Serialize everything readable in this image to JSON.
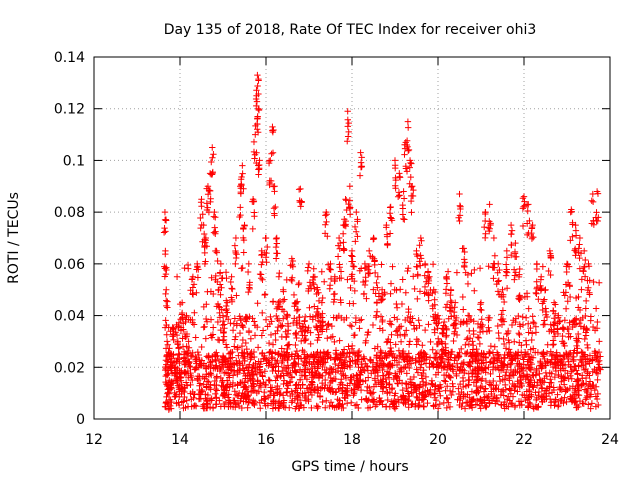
{
  "chart_data": {
    "type": "scatter",
    "title": "Day 135 of 2018, Rate Of TEC Index for receiver ohi3",
    "xlabel": "GPS time / hours",
    "ylabel": "ROTI / TECUs",
    "xlim": [
      12,
      24
    ],
    "ylim": [
      0,
      0.14
    ],
    "xticks": [
      12,
      14,
      16,
      18,
      20,
      22,
      24
    ],
    "xtick_labels": [
      "12",
      "14",
      "16",
      "18",
      "20",
      "22",
      "24"
    ],
    "yticks": [
      0,
      0.02,
      0.04,
      0.06,
      0.08,
      0.1,
      0.12,
      0.14
    ],
    "ytick_labels": [
      "0",
      "0.02",
      "0.04",
      "0.06",
      "0.08",
      "0.1",
      "0.12",
      "0.14"
    ],
    "grid": true,
    "marker": "+",
    "colors": {
      "series": "#ff0000",
      "grid": "#a0a0a0",
      "axes": "#000000"
    },
    "series": [
      {
        "name": "ROTI",
        "x": [
          13.65,
          13.66,
          13.68,
          13.7,
          13.72,
          13.75,
          13.8,
          13.85,
          13.9,
          13.95,
          14.0,
          14.05,
          14.1,
          14.15,
          14.2,
          14.3,
          14.4,
          14.5,
          14.55,
          14.6,
          14.65,
          14.7,
          14.75,
          14.8,
          14.85,
          14.9,
          14.95,
          15.0,
          15.1,
          15.2,
          15.3,
          15.4,
          15.45,
          15.5,
          15.6,
          15.7,
          15.75,
          15.78,
          15.8,
          15.82,
          15.85,
          15.9,
          16.0,
          16.1,
          16.15,
          16.2,
          16.25,
          16.3,
          16.4,
          16.5,
          16.6,
          16.7,
          16.8,
          16.9,
          17.0,
          17.1,
          17.2,
          17.3,
          17.4,
          17.5,
          17.6,
          17.7,
          17.8,
          17.85,
          17.9,
          17.95,
          18.0,
          18.1,
          18.2,
          18.3,
          18.4,
          18.5,
          18.6,
          18.7,
          18.8,
          18.9,
          19.0,
          19.1,
          19.2,
          19.25,
          19.3,
          19.35,
          19.4,
          19.5,
          19.6,
          19.7,
          19.8,
          19.9,
          20.0,
          20.1,
          20.2,
          20.3,
          20.4,
          20.5,
          20.6,
          20.7,
          20.8,
          20.9,
          21.0,
          21.1,
          21.2,
          21.3,
          21.4,
          21.5,
          21.6,
          21.7,
          21.8,
          21.9,
          22.0,
          22.1,
          22.2,
          22.3,
          22.4,
          22.5,
          22.6,
          22.7,
          22.8,
          22.9,
          23.0,
          23.1,
          23.2,
          23.3,
          23.4,
          23.5,
          23.6,
          23.7,
          23.75
        ],
        "y": [
          0.08,
          0.065,
          0.05,
          0.03,
          0.02,
          0.015,
          0.025,
          0.035,
          0.02,
          0.03,
          0.018,
          0.045,
          0.025,
          0.04,
          0.03,
          0.055,
          0.06,
          0.085,
          0.075,
          0.07,
          0.09,
          0.095,
          0.105,
          0.08,
          0.065,
          0.05,
          0.06,
          0.04,
          0.045,
          0.055,
          0.07,
          0.09,
          0.098,
          0.075,
          0.06,
          0.085,
          0.11,
          0.125,
          0.133,
          0.12,
          0.1,
          0.065,
          0.07,
          0.1,
          0.113,
          0.09,
          0.07,
          0.055,
          0.05,
          0.04,
          0.062,
          0.045,
          0.089,
          0.038,
          0.06,
          0.055,
          0.05,
          0.045,
          0.08,
          0.06,
          0.055,
          0.07,
          0.075,
          0.085,
          0.119,
          0.09,
          0.065,
          0.08,
          0.103,
          0.06,
          0.065,
          0.07,
          0.055,
          0.05,
          0.075,
          0.082,
          0.1,
          0.095,
          0.088,
          0.107,
          0.115,
          0.1,
          0.09,
          0.065,
          0.07,
          0.06,
          0.055,
          0.05,
          0.04,
          0.035,
          0.055,
          0.05,
          0.045,
          0.087,
          0.066,
          0.04,
          0.03,
          0.025,
          0.045,
          0.08,
          0.083,
          0.07,
          0.06,
          0.05,
          0.065,
          0.075,
          0.068,
          0.058,
          0.086,
          0.083,
          0.075,
          0.06,
          0.055,
          0.05,
          0.065,
          0.045,
          0.04,
          0.035,
          0.06,
          0.081,
          0.075,
          0.07,
          0.065,
          0.06,
          0.087,
          0.088,
          0.03
        ]
      }
    ]
  }
}
